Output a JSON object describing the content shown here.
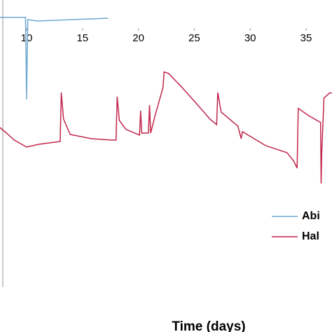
{
  "chart_data": {
    "type": "line",
    "x_label": "Time (days)",
    "xlim": [
      7.62,
      37.32
    ],
    "xticks": [
      10,
      15,
      20,
      25,
      30,
      35
    ],
    "ylim": [
      0,
      102.5
    ],
    "grid": false,
    "legend": "bottom-right",
    "series": [
      {
        "name": "Abi",
        "color": "#6fa8d0",
        "x": [
          7.62,
          9.9,
          10.0,
          10.1,
          11.0,
          17.3
        ],
        "values": [
          96.3,
          96.3,
          67,
          95.5,
          95,
          96
        ]
      },
      {
        "name": "Hal",
        "color": "#c0264a",
        "x": [
          7.6,
          8.2,
          8.9,
          10.0,
          11.1,
          13.0,
          13.1,
          13.3,
          13.9,
          15.8,
          17.6,
          18.0,
          18.1,
          18.3,
          18.9,
          20.1,
          20.2,
          20.3,
          20.9,
          21.0,
          21.1,
          21.5,
          22.2,
          22.3,
          22.7,
          23.9,
          25.2,
          26.4,
          27.0,
          27.1,
          27.4,
          28.9,
          29.2,
          29.3,
          31.4,
          33.3,
          33.9,
          34.2,
          34.3,
          35.2,
          36.3,
          36.35,
          36.4,
          36.6,
          37.1,
          37.3
        ],
        "values": [
          57,
          55,
          52.5,
          50,
          51,
          52,
          69.5,
          60,
          54.5,
          53,
          52.5,
          52.5,
          68,
          59.5,
          56.3,
          54.3,
          63,
          55,
          55,
          65,
          55,
          61.3,
          71.3,
          76.8,
          76.3,
          71.3,
          65.5,
          60,
          58,
          69.5,
          62.5,
          57.5,
          53,
          55.5,
          50.5,
          48,
          45,
          42.5,
          63.8,
          61.3,
          58.8,
          37,
          47.5,
          67.5,
          69.3,
          69.3
        ]
      }
    ]
  }
}
